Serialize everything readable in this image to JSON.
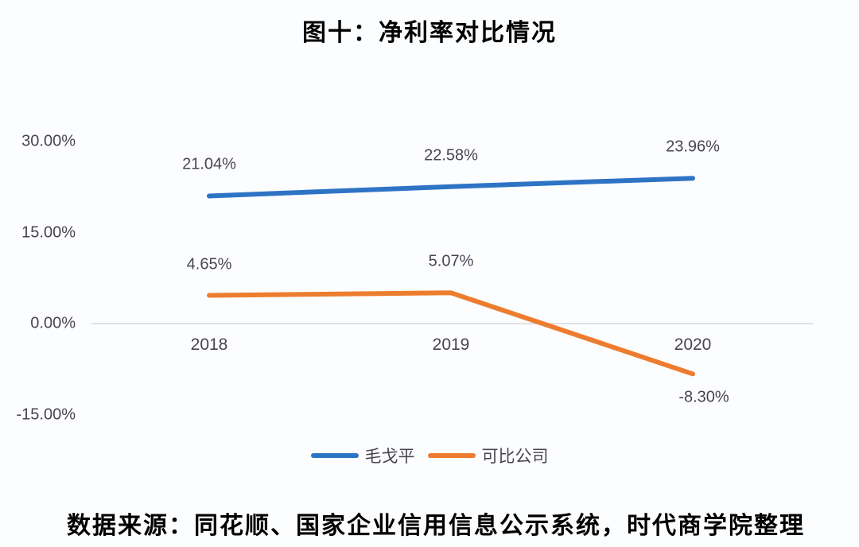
{
  "title": "图十：净利率对比情况",
  "source": "数据来源：同花顺、国家企业信用信息公示系统，时代商学院整理",
  "chart_data": {
    "type": "line",
    "title": "图十：净利率对比情况",
    "categories": [
      "2018",
      "2019",
      "2020"
    ],
    "series": [
      {
        "name": "毛戈平",
        "color": "#2e74c5",
        "values": [
          21.04,
          22.58,
          23.96
        ],
        "labels": [
          "21.04%",
          "22.58%",
          "23.96%"
        ]
      },
      {
        "name": "可比公司",
        "color": "#ed7d2e",
        "values": [
          4.65,
          5.07,
          -8.3
        ],
        "labels": [
          "4.65%",
          "5.07%",
          "-8.30%"
        ]
      }
    ],
    "y_ticks": [
      {
        "label": "30.00%",
        "value": 30
      },
      {
        "label": "15.00%",
        "value": 15
      },
      {
        "label": "0.00%",
        "value": 0
      },
      {
        "label": "-15.00%",
        "value": -15
      }
    ],
    "ylim": [
      -15,
      30
    ],
    "grid": "zero-baseline-only",
    "legend_position": "bottom",
    "axis_color": "#d6d8dc",
    "text_color": "#4a4453"
  }
}
